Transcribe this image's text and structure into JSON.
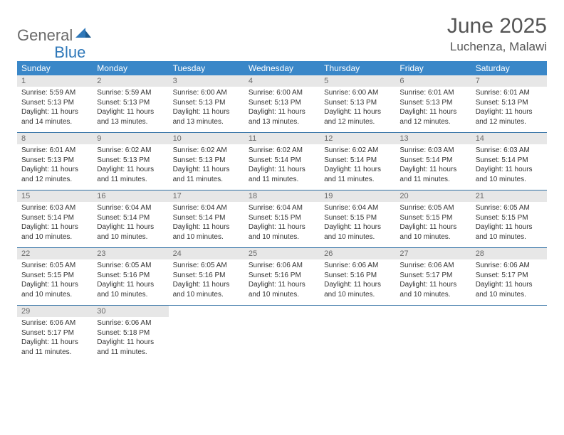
{
  "logo": {
    "word1": "General",
    "word2": "Blue"
  },
  "header": {
    "title": "June 2025",
    "location": "Luchenza, Malawi"
  },
  "colors": {
    "header_bg": "#3a87c8",
    "header_text": "#ffffff",
    "daynum_bg": "#e7e7e7",
    "daynum_text": "#6a6a6a",
    "row_border": "#2f6fa3",
    "logo_gray": "#6a6a6a",
    "logo_blue": "#2f78b9"
  },
  "weekdays": [
    "Sunday",
    "Monday",
    "Tuesday",
    "Wednesday",
    "Thursday",
    "Friday",
    "Saturday"
  ],
  "weeks": [
    [
      {
        "n": "1",
        "sr": "5:59 AM",
        "ss": "5:13 PM",
        "dl": "11 hours and 14 minutes."
      },
      {
        "n": "2",
        "sr": "5:59 AM",
        "ss": "5:13 PM",
        "dl": "11 hours and 13 minutes."
      },
      {
        "n": "3",
        "sr": "6:00 AM",
        "ss": "5:13 PM",
        "dl": "11 hours and 13 minutes."
      },
      {
        "n": "4",
        "sr": "6:00 AM",
        "ss": "5:13 PM",
        "dl": "11 hours and 13 minutes."
      },
      {
        "n": "5",
        "sr": "6:00 AM",
        "ss": "5:13 PM",
        "dl": "11 hours and 12 minutes."
      },
      {
        "n": "6",
        "sr": "6:01 AM",
        "ss": "5:13 PM",
        "dl": "11 hours and 12 minutes."
      },
      {
        "n": "7",
        "sr": "6:01 AM",
        "ss": "5:13 PM",
        "dl": "11 hours and 12 minutes."
      }
    ],
    [
      {
        "n": "8",
        "sr": "6:01 AM",
        "ss": "5:13 PM",
        "dl": "11 hours and 12 minutes."
      },
      {
        "n": "9",
        "sr": "6:02 AM",
        "ss": "5:13 PM",
        "dl": "11 hours and 11 minutes."
      },
      {
        "n": "10",
        "sr": "6:02 AM",
        "ss": "5:13 PM",
        "dl": "11 hours and 11 minutes."
      },
      {
        "n": "11",
        "sr": "6:02 AM",
        "ss": "5:14 PM",
        "dl": "11 hours and 11 minutes."
      },
      {
        "n": "12",
        "sr": "6:02 AM",
        "ss": "5:14 PM",
        "dl": "11 hours and 11 minutes."
      },
      {
        "n": "13",
        "sr": "6:03 AM",
        "ss": "5:14 PM",
        "dl": "11 hours and 11 minutes."
      },
      {
        "n": "14",
        "sr": "6:03 AM",
        "ss": "5:14 PM",
        "dl": "11 hours and 10 minutes."
      }
    ],
    [
      {
        "n": "15",
        "sr": "6:03 AM",
        "ss": "5:14 PM",
        "dl": "11 hours and 10 minutes."
      },
      {
        "n": "16",
        "sr": "6:04 AM",
        "ss": "5:14 PM",
        "dl": "11 hours and 10 minutes."
      },
      {
        "n": "17",
        "sr": "6:04 AM",
        "ss": "5:14 PM",
        "dl": "11 hours and 10 minutes."
      },
      {
        "n": "18",
        "sr": "6:04 AM",
        "ss": "5:15 PM",
        "dl": "11 hours and 10 minutes."
      },
      {
        "n": "19",
        "sr": "6:04 AM",
        "ss": "5:15 PM",
        "dl": "11 hours and 10 minutes."
      },
      {
        "n": "20",
        "sr": "6:05 AM",
        "ss": "5:15 PM",
        "dl": "11 hours and 10 minutes."
      },
      {
        "n": "21",
        "sr": "6:05 AM",
        "ss": "5:15 PM",
        "dl": "11 hours and 10 minutes."
      }
    ],
    [
      {
        "n": "22",
        "sr": "6:05 AM",
        "ss": "5:15 PM",
        "dl": "11 hours and 10 minutes."
      },
      {
        "n": "23",
        "sr": "6:05 AM",
        "ss": "5:16 PM",
        "dl": "11 hours and 10 minutes."
      },
      {
        "n": "24",
        "sr": "6:05 AM",
        "ss": "5:16 PM",
        "dl": "11 hours and 10 minutes."
      },
      {
        "n": "25",
        "sr": "6:06 AM",
        "ss": "5:16 PM",
        "dl": "11 hours and 10 minutes."
      },
      {
        "n": "26",
        "sr": "6:06 AM",
        "ss": "5:16 PM",
        "dl": "11 hours and 10 minutes."
      },
      {
        "n": "27",
        "sr": "6:06 AM",
        "ss": "5:17 PM",
        "dl": "11 hours and 10 minutes."
      },
      {
        "n": "28",
        "sr": "6:06 AM",
        "ss": "5:17 PM",
        "dl": "11 hours and 10 minutes."
      }
    ],
    [
      {
        "n": "29",
        "sr": "6:06 AM",
        "ss": "5:17 PM",
        "dl": "11 hours and 11 minutes."
      },
      {
        "n": "30",
        "sr": "6:06 AM",
        "ss": "5:18 PM",
        "dl": "11 hours and 11 minutes."
      },
      null,
      null,
      null,
      null,
      null
    ]
  ],
  "labels": {
    "sunrise": "Sunrise:",
    "sunset": "Sunset:",
    "daylight": "Daylight:"
  }
}
